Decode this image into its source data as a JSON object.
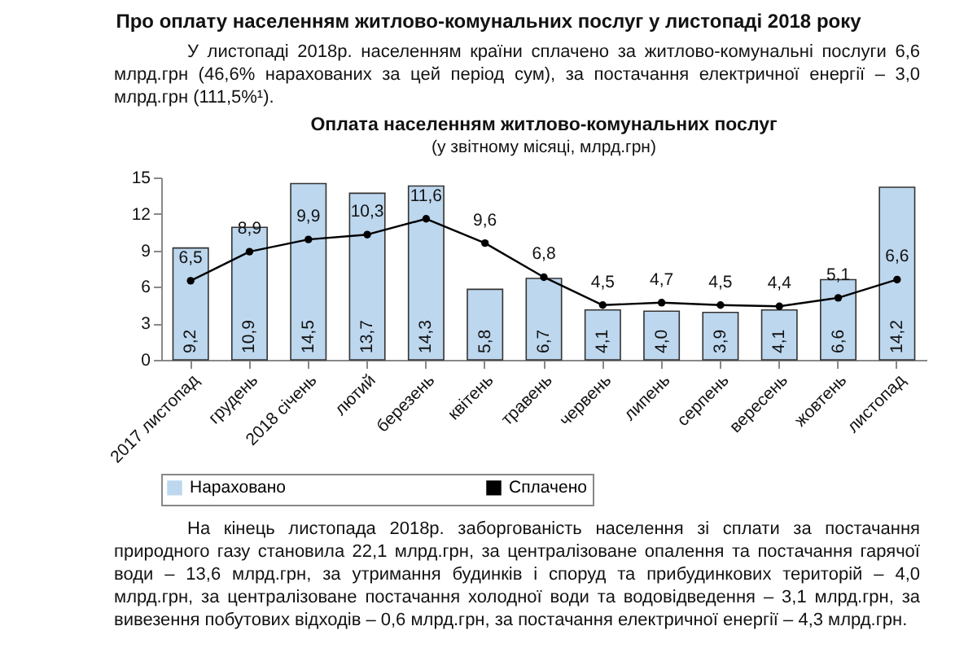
{
  "chart_data": {
    "type": "bar",
    "title": "Оплата населенням житлово-комунальних послуг",
    "subtitle": "(у звітному місяці, млрд.грн)",
    "annotations": [
      "Про оплату населенням житлово-комунальних послуг у листопаді 2018 року",
      "У листопаді 2018р. населенням країни сплачено за житлово-комунальні послуги 6,6 млрд.грн (46,6% нарахованих за цей період сум), за постачання електричної енергії – 3,0 млрд.грн (111,5%¹).",
      "На кінець листопада 2018р. заборгованість населення зі сплати за постачання природного газу становила 22,1 млрд.грн, за централізоване опалення та постачання гарячої води – 13,6 млрд.грн, за утримання будинків і споруд та прибудинкових територій – 4,0 млрд.грн, за централізоване постачання холодної води та водовідведення – 3,1 млрд.грн, за вивезення побутових відходів – 0,6 млрд.грн, за постачання електричної енергії – 4,3 млрд.грн."
    ],
    "categories": [
      "2017 листопад",
      "грудень",
      "2018 січень",
      "лютий",
      "березень",
      "квітень",
      "травень",
      "червень",
      "липень",
      "серпень",
      "вересень",
      "жовтень",
      "листопад"
    ],
    "series": [
      {
        "name": "Нараховано",
        "color": "#bdd7ee",
        "values": [
          9.2,
          10.9,
          14.5,
          13.7,
          14.3,
          5.8,
          6.7,
          4.1,
          4.0,
          3.9,
          4.1,
          6.6,
          14.2
        ],
        "value_labels": [
          "9,2",
          "10,9",
          "14,5",
          "13,7",
          "14,3",
          "5,8",
          "6,7",
          "4,1",
          "4,0",
          "3,9",
          "4,1",
          "6,6",
          "14,2"
        ]
      },
      {
        "name": "Сплачено",
        "type": "line",
        "color": "#000000",
        "marker": "circle",
        "line_style": "solid",
        "values": [
          6.5,
          8.9,
          9.9,
          10.3,
          11.6,
          9.6,
          6.8,
          4.5,
          4.7,
          4.5,
          4.4,
          5.1,
          6.6
        ],
        "value_labels": [
          "6,5",
          "8,9",
          "9,9",
          "10,3",
          "11,6",
          "9,6",
          "6,8",
          "4,5",
          "4,7",
          "4,5",
          "4,4",
          "5,1",
          "6,6"
        ]
      }
    ],
    "ylim": [
      0,
      15
    ],
    "yticks": [
      0,
      3,
      6,
      9,
      12,
      15
    ],
    "grid": false,
    "legend": "bottom"
  }
}
